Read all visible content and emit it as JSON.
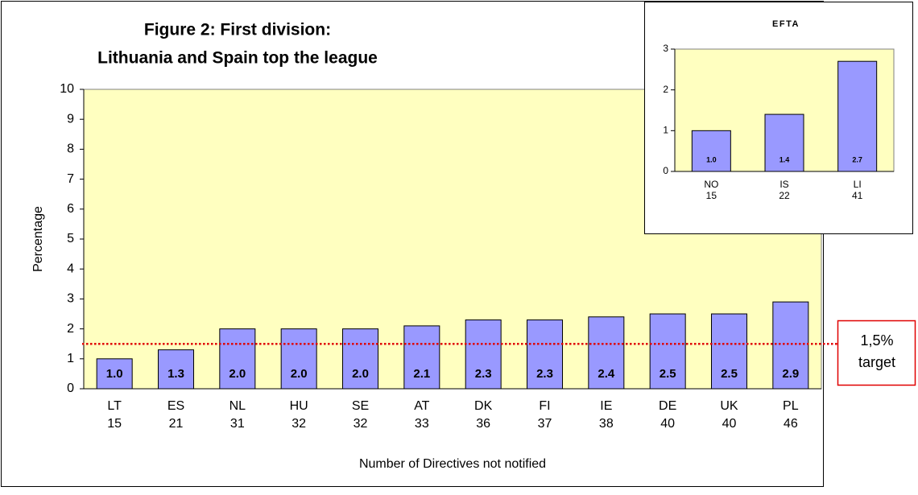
{
  "chart_data": [
    {
      "type": "bar",
      "title": "Figure 2: First division:",
      "subtitle": "Lithuania and Spain top the league",
      "x_label": "Number of Directives not notified",
      "y_label": "Percentage",
      "categories": [
        "LT",
        "ES",
        "NL",
        "HU",
        "SE",
        "AT",
        "DK",
        "FI",
        "IE",
        "DE",
        "UK",
        "PL"
      ],
      "directives": [
        15,
        21,
        31,
        32,
        32,
        33,
        36,
        37,
        38,
        40,
        40,
        46
      ],
      "values": [
        1.0,
        1.3,
        2.0,
        2.0,
        2.0,
        2.1,
        2.3,
        2.3,
        2.4,
        2.5,
        2.5,
        2.9
      ],
      "value_labels": [
        "1.0",
        "1.3",
        "2.0",
        "2.0",
        "2.0",
        "2.1",
        "2.3",
        "2.3",
        "2.4",
        "2.5",
        "2.5",
        "2.9"
      ],
      "color": "#9999ff",
      "background": "#ffffc0",
      "ylim": [
        0,
        10
      ],
      "yticks": [
        0,
        1,
        2,
        3,
        4,
        5,
        6,
        7,
        8,
        9,
        10
      ],
      "grid": false,
      "target": {
        "value": 1.5,
        "label": [
          "1,5%",
          "target"
        ],
        "color": "#e00000"
      }
    },
    {
      "type": "bar",
      "title": "EFTA",
      "categories": [
        "NO",
        "IS",
        "LI"
      ],
      "directives": [
        15,
        22,
        41
      ],
      "values": [
        1.0,
        1.4,
        2.7
      ],
      "value_labels": [
        "1.0",
        "1.4",
        "2.7"
      ],
      "color": "#9999ff",
      "background": "#ffffc0",
      "ylim": [
        0,
        3
      ],
      "yticks": [
        0,
        1,
        2,
        3
      ],
      "grid": false
    }
  ]
}
